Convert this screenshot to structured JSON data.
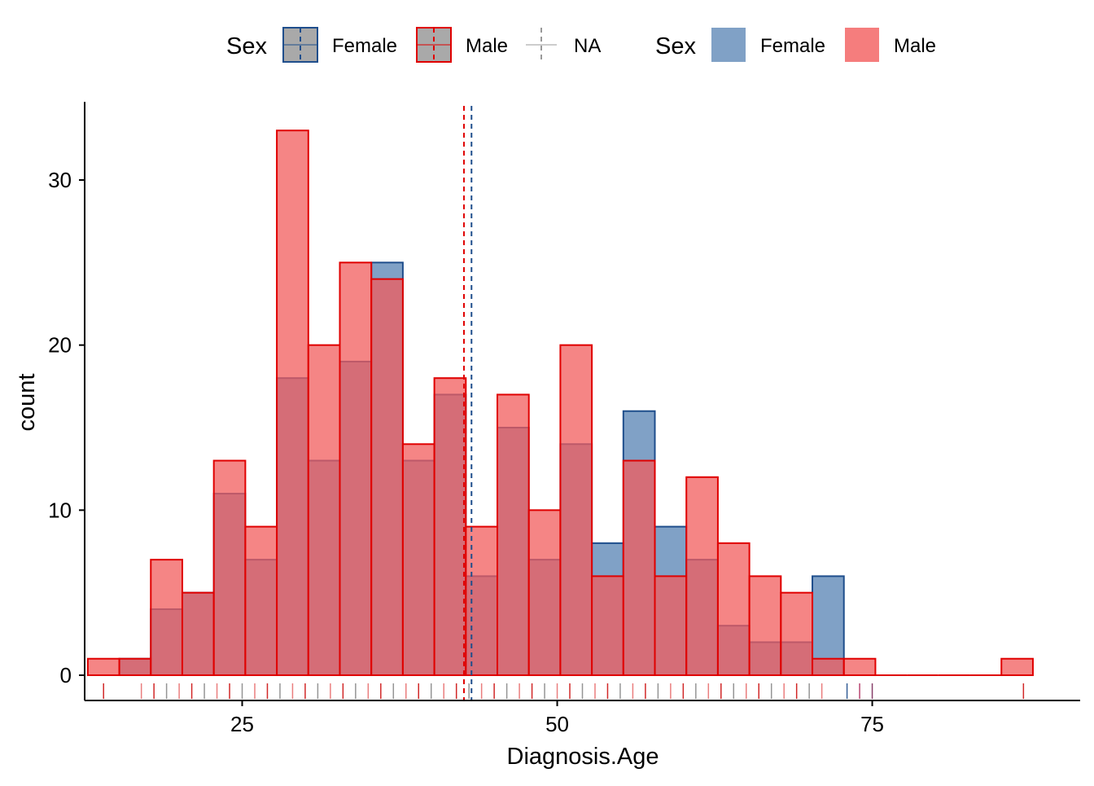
{
  "legend_linetype": {
    "title": "Sex",
    "items": [
      {
        "label": "Female",
        "key": "female"
      },
      {
        "label": "Male",
        "key": "male"
      },
      {
        "label": "NA",
        "key": "na"
      }
    ]
  },
  "legend_fill": {
    "title": "Sex",
    "items": [
      {
        "label": "Female",
        "key": "female"
      },
      {
        "label": "Male",
        "key": "male"
      }
    ]
  },
  "colors": {
    "female_line": "#1f4e8c",
    "female_fill": "#6a90bc",
    "male_line": "#e00000",
    "male_fill": "#f25c5c",
    "na_line": "#999999",
    "legend_key_fill": "#a9a9a9"
  },
  "chart_data": {
    "type": "histogram",
    "xlabel": "Diagnosis.Age",
    "ylabel": "count",
    "xlim": [
      12.5,
      91.5
    ],
    "ylim": [
      0,
      35
    ],
    "xticks": [
      25,
      50,
      75
    ],
    "yticks": [
      0,
      10,
      20,
      30
    ],
    "bin_width": 2.5,
    "bin_start": 14,
    "series": [
      {
        "name": "Female",
        "values": [
          0,
          1,
          4,
          5,
          11,
          7,
          18,
          13,
          19,
          25,
          13,
          17,
          6,
          15,
          7,
          14,
          8,
          16,
          9,
          7,
          3,
          2,
          2,
          6,
          0,
          0,
          0,
          0,
          0,
          0
        ]
      },
      {
        "name": "Male",
        "values": [
          1,
          1,
          7,
          5,
          13,
          9,
          33,
          20,
          25,
          24,
          14,
          18,
          9,
          17,
          10,
          20,
          6,
          13,
          6,
          12,
          8,
          6,
          5,
          1,
          1,
          0,
          0,
          0,
          0,
          1
        ]
      }
    ],
    "means": [
      {
        "name": "Female",
        "value": 43.2
      },
      {
        "name": "Male",
        "value": 42.6
      }
    ],
    "rug_ages": [
      14,
      17,
      18,
      19,
      20,
      21,
      22,
      23,
      24,
      25,
      26,
      27,
      28,
      29,
      30,
      31,
      32,
      33,
      34,
      35,
      36,
      37,
      38,
      39,
      40,
      41,
      42,
      43,
      44,
      45,
      46,
      47,
      48,
      49,
      50,
      51,
      52,
      53,
      54,
      55,
      56,
      57,
      58,
      59,
      60,
      61,
      62,
      63,
      64,
      65,
      66,
      67,
      68,
      69,
      70,
      71,
      73,
      74,
      75,
      87
    ],
    "grid": false,
    "legend_position": "top"
  }
}
